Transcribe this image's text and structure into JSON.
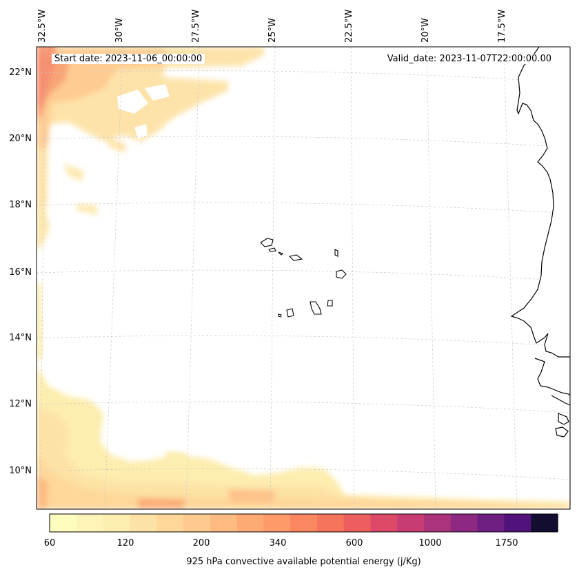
{
  "map": {
    "start_date": "Start date: 2023-11-06_00:00:00",
    "valid_date": "Valid_date: 2023-11-07T22:00:00.00",
    "lon_ticks": [
      "32.5°W",
      "30°W",
      "27.5°W",
      "25°W",
      "22.5°W",
      "20°W",
      "17.5°W"
    ],
    "lat_ticks": [
      "22°N",
      "20°N",
      "18°N",
      "16°N",
      "14°N",
      "12°N",
      "10°N"
    ],
    "gridlines": true,
    "colorbar": {
      "label": "925 hPa convective available potential energy (j/Kg)",
      "tick_labels": [
        "60",
        "120",
        "200",
        "340",
        "600",
        "1000",
        "1750"
      ],
      "colors": [
        "#fcfdbf",
        "#fcf5b7",
        "#fdedaf",
        "#fde2a5",
        "#fed799",
        "#feca8d",
        "#febb81",
        "#feaa74",
        "#fe9969",
        "#fb8761",
        "#f6735c",
        "#ec5f5e",
        "#dd4a69",
        "#c73d73",
        "#ab337c",
        "#8d2981",
        "#6e1e81",
        "#51127c",
        "#120d31"
      ]
    },
    "land_color": "#ffffff",
    "coastline_color": "#000000"
  }
}
